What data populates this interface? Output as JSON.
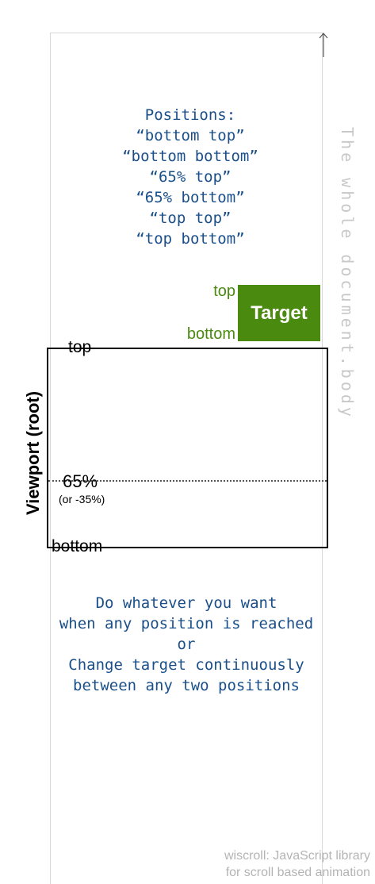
{
  "document": {
    "label": "The whole document.body"
  },
  "positions": {
    "heading": "Positions:",
    "items": [
      "“bottom top”",
      "“bottom bottom”",
      "“65% top”",
      "“65% bottom”",
      "“top top”",
      "“top bottom”"
    ]
  },
  "target": {
    "label": "Target",
    "top_label": "top",
    "bottom_label": "bottom",
    "color": "#4a8a0e"
  },
  "viewport": {
    "label": "Viewport (root)",
    "top_label": "top",
    "bottom_label": "bottom",
    "mid_label": "65%",
    "mid_sub_label": "(or -35%)"
  },
  "note": {
    "lines": [
      "Do whatever you want",
      "when any position is reached",
      "or",
      "Change target continuously",
      "between any two positions"
    ],
    "color": "#1a4f8a"
  },
  "credit": {
    "lines": [
      "wiscroll: JavaScript library",
      "for scroll based animation"
    ]
  }
}
